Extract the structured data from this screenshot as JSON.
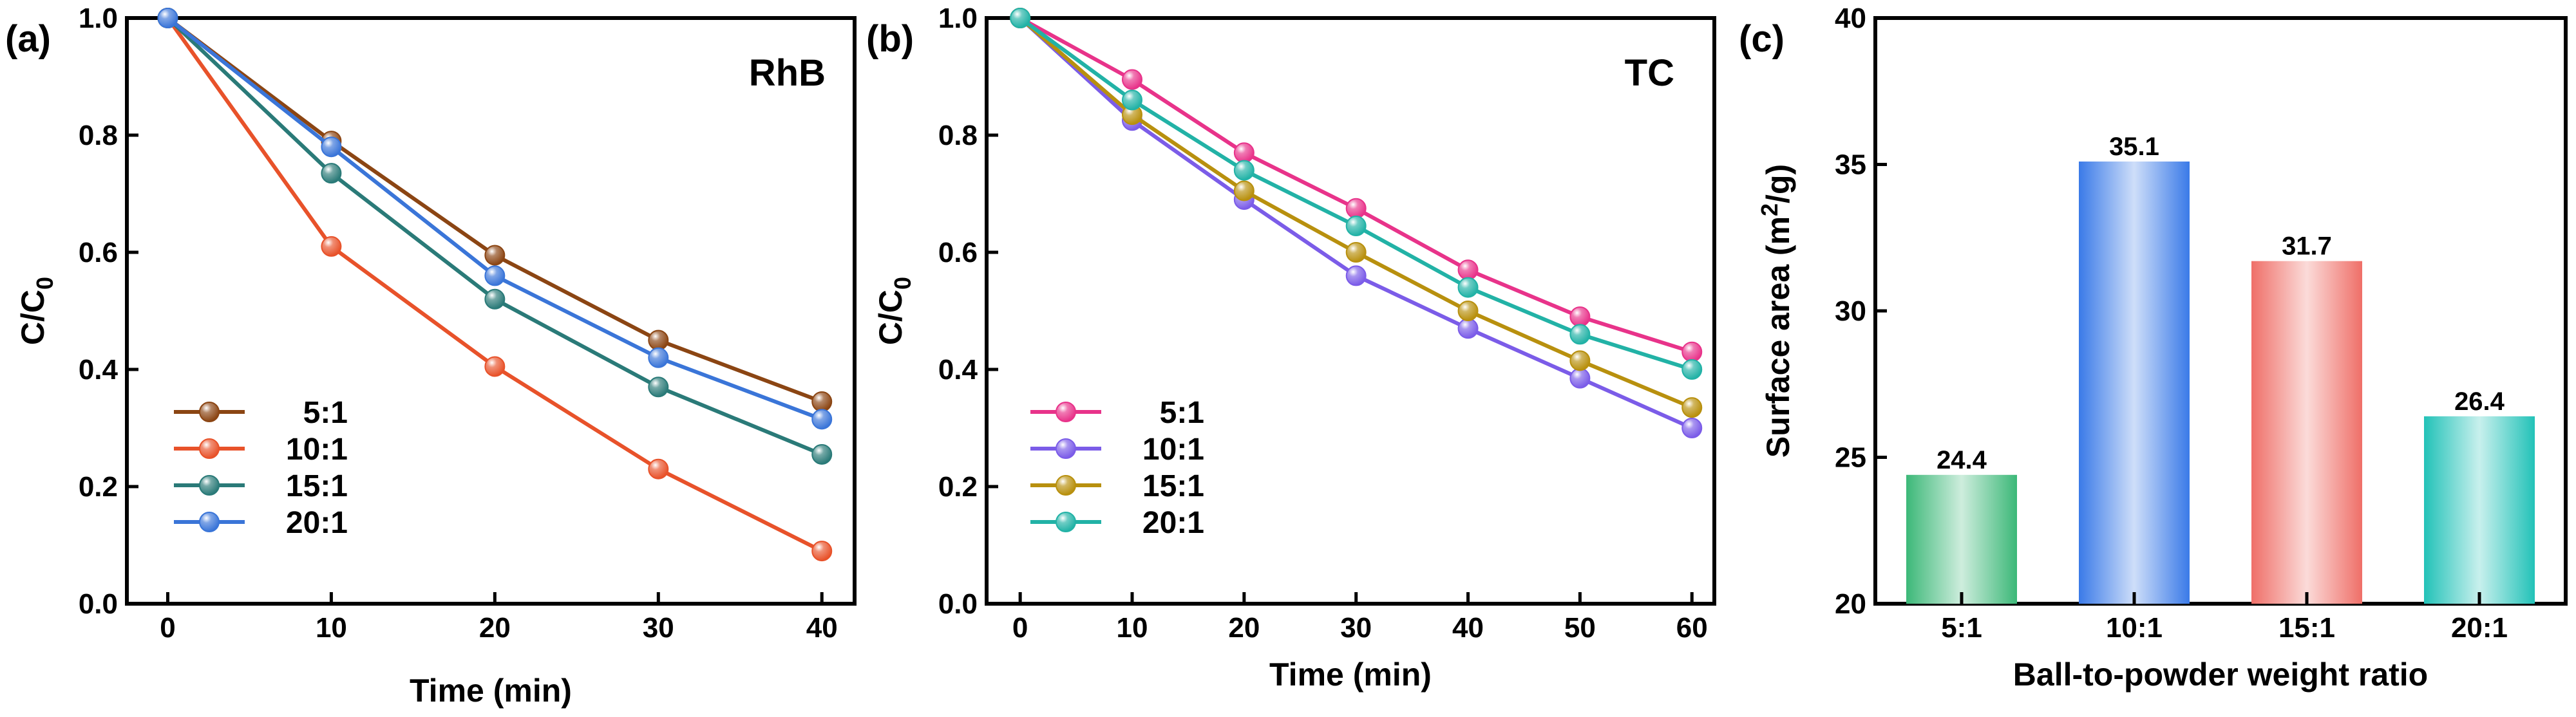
{
  "chart_data": [
    {
      "type": "line",
      "panel_label": "(a)",
      "series_label": "RhB",
      "xlabel": "Time (min)",
      "ylabel_main": "C/C",
      "ylabel_sub": "0",
      "xlim": [
        -2.5,
        42
      ],
      "ylim": [
        0,
        1.0
      ],
      "xticks": [
        0,
        10,
        20,
        30,
        40
      ],
      "yticks": [
        0.0,
        0.2,
        0.4,
        0.6,
        0.8,
        1.0
      ],
      "ytick_labels": [
        "0.0",
        "0.2",
        "0.4",
        "0.6",
        "0.8",
        "1.0"
      ],
      "legend_position": "bottom-left",
      "x": [
        0,
        10,
        20,
        30,
        40
      ],
      "series": [
        {
          "name": "5:1",
          "color": "#8b4513",
          "values": [
            1.0,
            0.79,
            0.595,
            0.45,
            0.345
          ]
        },
        {
          "name": "10:1",
          "color": "#e8522a",
          "values": [
            1.0,
            0.61,
            0.405,
            0.23,
            0.09
          ]
        },
        {
          "name": "15:1",
          "color": "#2a7a78",
          "values": [
            1.0,
            0.735,
            0.52,
            0.37,
            0.255
          ]
        },
        {
          "name": "20:1",
          "color": "#3a75d8",
          "values": [
            1.0,
            0.78,
            0.56,
            0.42,
            0.315
          ]
        }
      ]
    },
    {
      "type": "line",
      "panel_label": "(b)",
      "series_label": "TC",
      "xlabel": "Time (min)",
      "ylabel_main": "C/C",
      "ylabel_sub": "0",
      "xlim": [
        -3,
        62
      ],
      "ylim": [
        0,
        1.0
      ],
      "xticks": [
        0,
        10,
        20,
        30,
        40,
        50,
        60
      ],
      "yticks": [
        0.0,
        0.2,
        0.4,
        0.6,
        0.8,
        1.0
      ],
      "ytick_labels": [
        "0.0",
        "0.2",
        "0.4",
        "0.6",
        "0.8",
        "1.0"
      ],
      "legend_position": "bottom-left",
      "x": [
        0,
        10,
        20,
        30,
        40,
        50,
        60
      ],
      "series": [
        {
          "name": "5:1",
          "color": "#e8338a",
          "values": [
            1.0,
            0.895,
            0.77,
            0.675,
            0.57,
            0.49,
            0.43
          ]
        },
        {
          "name": "10:1",
          "color": "#7b5ce8",
          "values": [
            1.0,
            0.825,
            0.69,
            0.56,
            0.47,
            0.385,
            0.3
          ]
        },
        {
          "name": "15:1",
          "color": "#b8900e",
          "values": [
            1.0,
            0.835,
            0.705,
            0.6,
            0.5,
            0.415,
            0.335
          ]
        },
        {
          "name": "20:1",
          "color": "#22b2a6",
          "values": [
            1.0,
            0.86,
            0.74,
            0.645,
            0.54,
            0.46,
            0.4
          ]
        }
      ]
    },
    {
      "type": "bar",
      "panel_label": "(c)",
      "xlabel": "Ball-to-powder weight ratio",
      "ylabel_pre": "Surface area (m",
      "ylabel_sup": "2",
      "ylabel_post": "/g)",
      "ylim": [
        20,
        40
      ],
      "yticks": [
        20,
        25,
        30,
        35,
        40
      ],
      "ytick_labels": [
        "20",
        "25",
        "30",
        "35",
        "40"
      ],
      "categories": [
        "5:1",
        "10:1",
        "15:1",
        "20:1"
      ],
      "values": [
        24.4,
        35.1,
        31.7,
        26.4
      ],
      "value_labels": [
        "24.4",
        "35.1",
        "31.7",
        "26.4"
      ],
      "colors": [
        "#3cb878",
        "#3a7ae8",
        "#ef6f68",
        "#22c2b8"
      ]
    }
  ]
}
